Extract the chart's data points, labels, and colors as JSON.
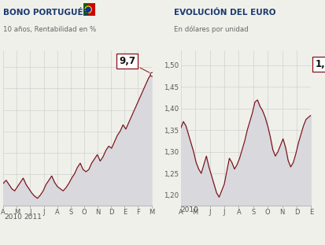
{
  "title1": "BONO PORTUGUÉS",
  "subtitle1": "10 años, Rentabilidad en %",
  "title2": "EVOLUCIÓN DEL EURO",
  "subtitle2": "En dólares por unidad",
  "annotation1": "9,7",
  "annotation2": "1,",
  "bg_color": "#f0f0eb",
  "line_color": "#7a1015",
  "fill_color": "#d8d8dd",
  "grid_color": "#c8c8c8",
  "title_color": "#1a3a6e",
  "subtitle_color": "#666666",
  "xticks1": [
    "A",
    "M",
    "J",
    "J",
    "A",
    "S",
    "O",
    "N",
    "D",
    "E",
    "F",
    "M"
  ],
  "xticks2": [
    "A",
    "M",
    "J",
    "J",
    "A",
    "S",
    "O",
    "N",
    "D",
    "E"
  ],
  "ylim1": [
    3.5,
    10.8
  ],
  "ylim2": [
    1.175,
    1.535
  ],
  "yticks2": [
    1.2,
    1.25,
    1.3,
    1.35,
    1.4,
    1.45,
    1.5
  ],
  "portugal_bond": [
    4.55,
    4.7,
    4.5,
    4.3,
    4.2,
    4.4,
    4.6,
    4.8,
    4.5,
    4.3,
    4.1,
    3.95,
    3.85,
    4.0,
    4.2,
    4.5,
    4.7,
    4.9,
    4.6,
    4.4,
    4.3,
    4.2,
    4.35,
    4.55,
    4.8,
    5.0,
    5.3,
    5.5,
    5.2,
    5.1,
    5.2,
    5.5,
    5.7,
    5.9,
    5.6,
    5.8,
    6.1,
    6.3,
    6.2,
    6.5,
    6.8,
    7.0,
    7.3,
    7.1,
    7.4,
    7.7,
    8.0,
    8.3,
    8.6,
    8.9,
    9.2,
    9.5,
    9.7
  ],
  "euro_usd": [
    1.355,
    1.37,
    1.36,
    1.34,
    1.32,
    1.3,
    1.275,
    1.26,
    1.25,
    1.27,
    1.29,
    1.265,
    1.245,
    1.225,
    1.205,
    1.195,
    1.21,
    1.225,
    1.255,
    1.285,
    1.275,
    1.26,
    1.27,
    1.285,
    1.305,
    1.325,
    1.35,
    1.37,
    1.39,
    1.415,
    1.42,
    1.405,
    1.395,
    1.38,
    1.36,
    1.335,
    1.305,
    1.29,
    1.3,
    1.315,
    1.33,
    1.31,
    1.28,
    1.265,
    1.275,
    1.295,
    1.32,
    1.34,
    1.36,
    1.375,
    1.38,
    1.385
  ]
}
